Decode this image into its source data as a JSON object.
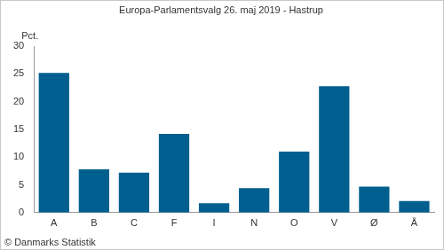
{
  "chart_data": {
    "type": "bar",
    "title": "Europa-Parlamentsvalg 26. maj 2019 - Hastrup",
    "ylabel": "Pct.",
    "source": "© Danmarks Statistik",
    "categories": [
      "A",
      "B",
      "C",
      "F",
      "I",
      "N",
      "O",
      "V",
      "Ø",
      "Å"
    ],
    "values": [
      25.2,
      7.8,
      7.2,
      14.2,
      1.7,
      4.4,
      11.0,
      22.8,
      4.7,
      2.1
    ],
    "color": "#005f8f",
    "ylim": [
      0,
      30
    ],
    "yticks": [
      0,
      5,
      10,
      15,
      20,
      25,
      30
    ],
    "grid": false
  }
}
